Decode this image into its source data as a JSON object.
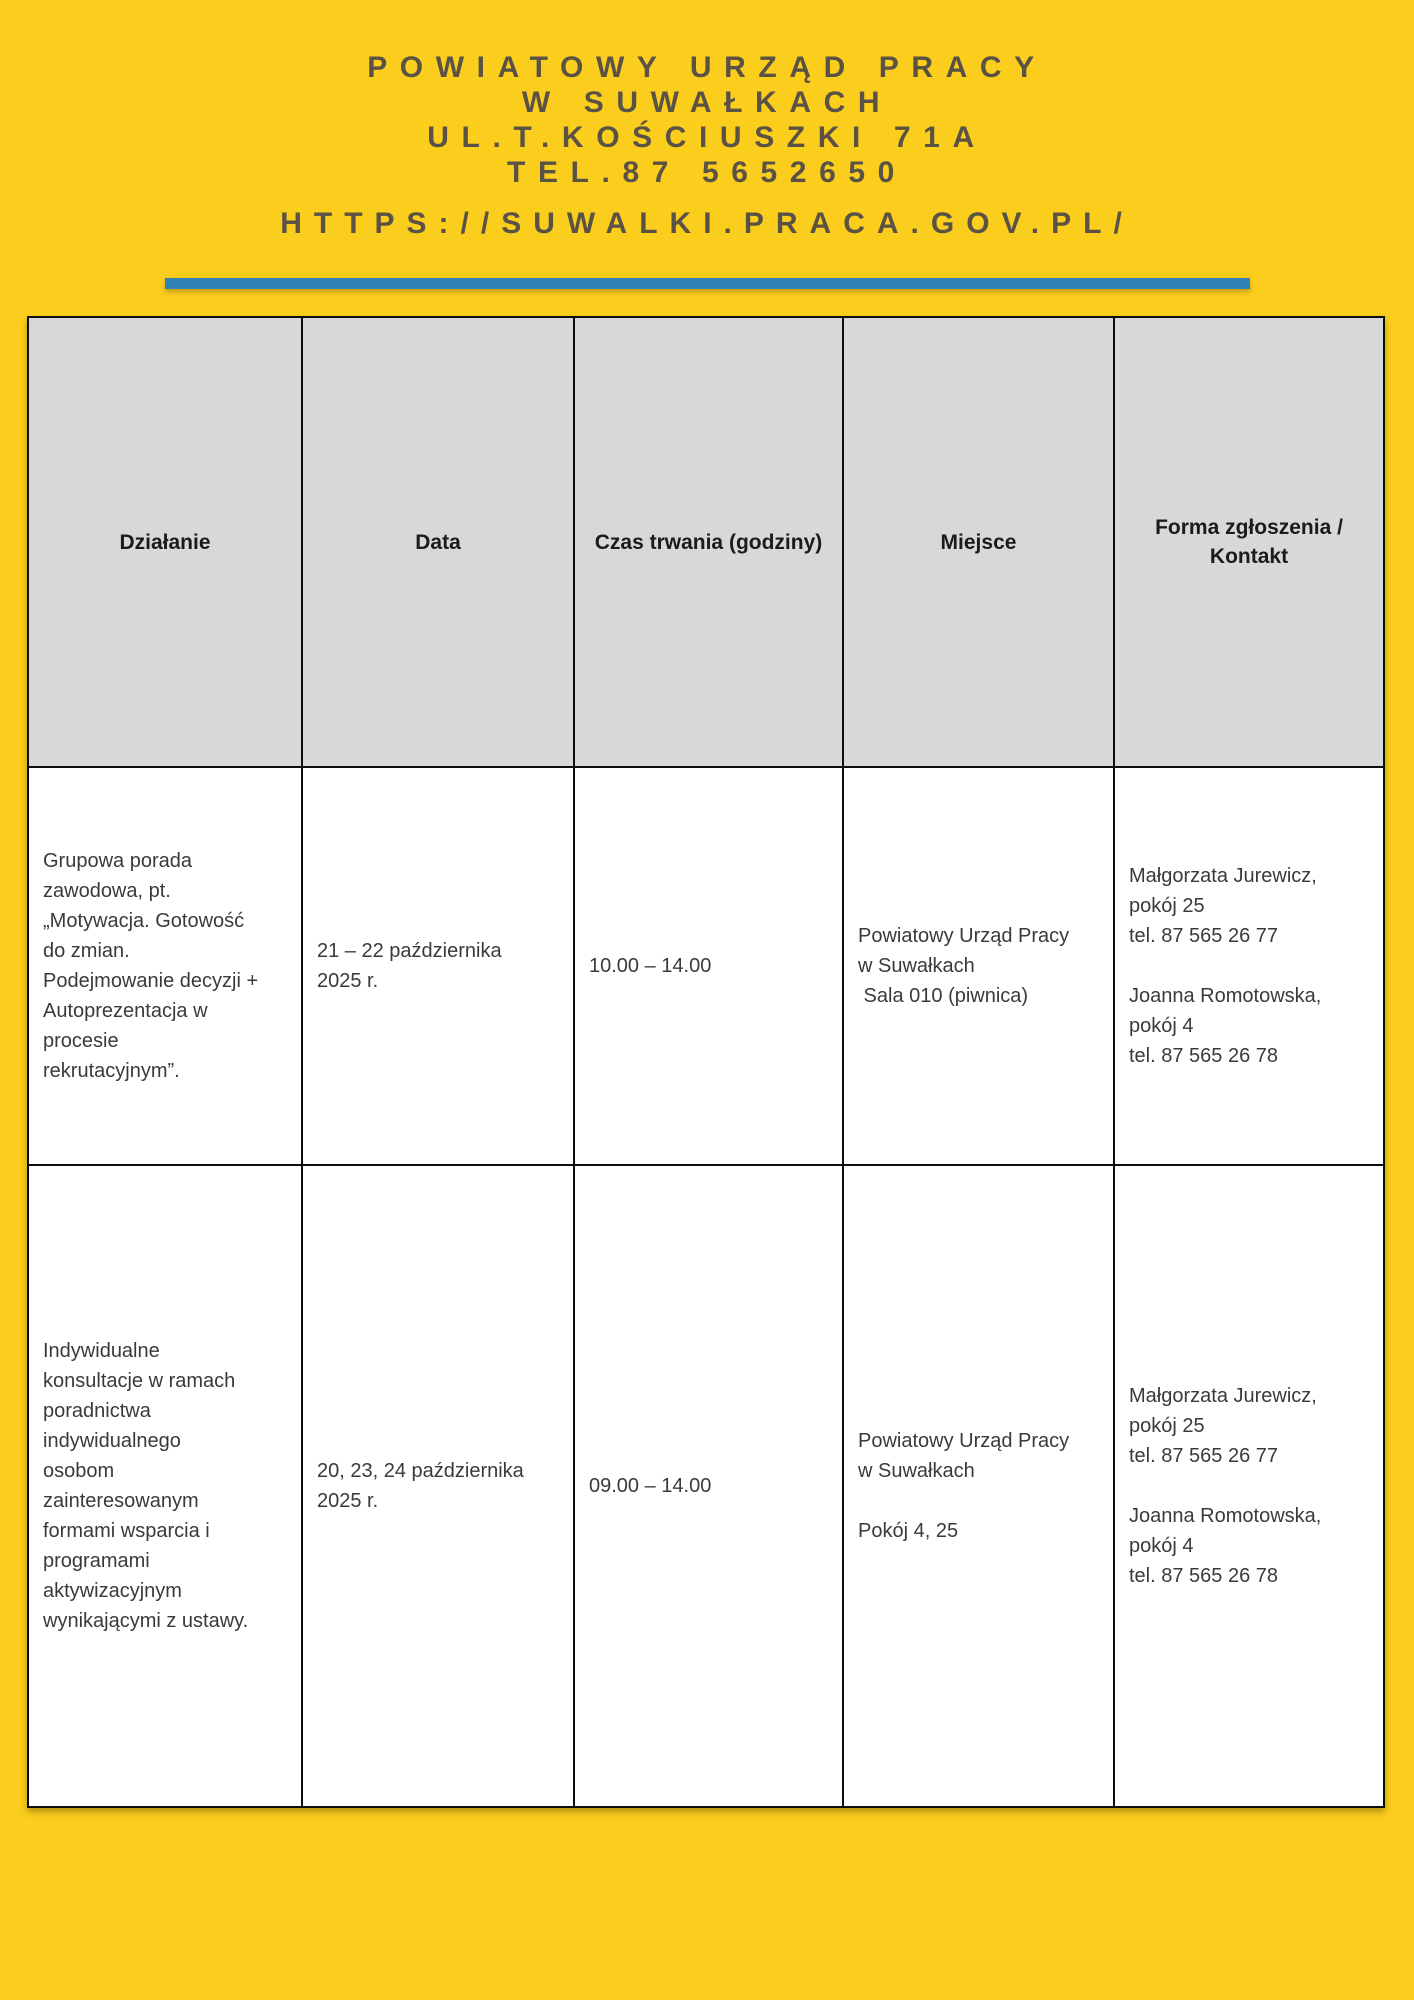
{
  "colors": {
    "page_background": "#fbcd1d",
    "divider_blue": "#2e82b5",
    "table_header_gray": "#d8d8d8",
    "letterhead_text": "#5a5244",
    "body_text": "#3a3a3a",
    "border_black": "#0d0d0d"
  },
  "letterhead": {
    "lines": [
      "POWIATOWY URZĄD PRACY",
      "W SUWAŁKACH",
      "UL.T.KOŚCIUSZKI 71A",
      "TEL.87 5652650"
    ],
    "url": "HTTPS://SUWALKI.PRACA.GOV.PL/"
  },
  "table": {
    "columns": [
      "Działanie",
      "Data",
      "Czas trwania (godziny)",
      "Miejsce",
      "Forma zgłoszenia /\nKontakt"
    ],
    "rows": [
      {
        "dzialanie": "Grupowa porada\nzawodowa, pt.\n„Motywacja. Gotowość\ndo zmian.\nPodejmowanie decyzji +\nAutoprezentacja w\nprocesie\nrekrutacyjnym”.",
        "data": "21 – 22 października\n2025 r.",
        "czas": "10.00 – 14.00",
        "miejsce": [
          "Powiatowy Urząd Pracy\nw Suwałkach\n Sala 010 (piwnica)"
        ],
        "kontakt": [
          "Małgorzata Jurewicz,\npokój 25\ntel. 87 565 26 77",
          "Joanna Romotowska,\npokój 4\ntel. 87 565 26 78"
        ]
      },
      {
        "dzialanie": "Indywidualne\nkonsultacje w ramach\nporadnictwa\nindywidualnego\nosobom\nzainteresowanym\nformami wsparcia i\nprogramami\naktywizacyjnym\nwynikającymi z ustawy.",
        "data": "20, 23, 24 października\n2025 r.",
        "czas": "09.00 – 14.00",
        "miejsce": [
          "Powiatowy Urząd Pracy\nw Suwałkach",
          "Pokój 4, 25"
        ],
        "kontakt": [
          "Małgorzata Jurewicz,\npokój 25\ntel. 87 565 26 77",
          "Joanna Romotowska,\npokój 4\ntel. 87 565 26 78"
        ]
      }
    ]
  }
}
